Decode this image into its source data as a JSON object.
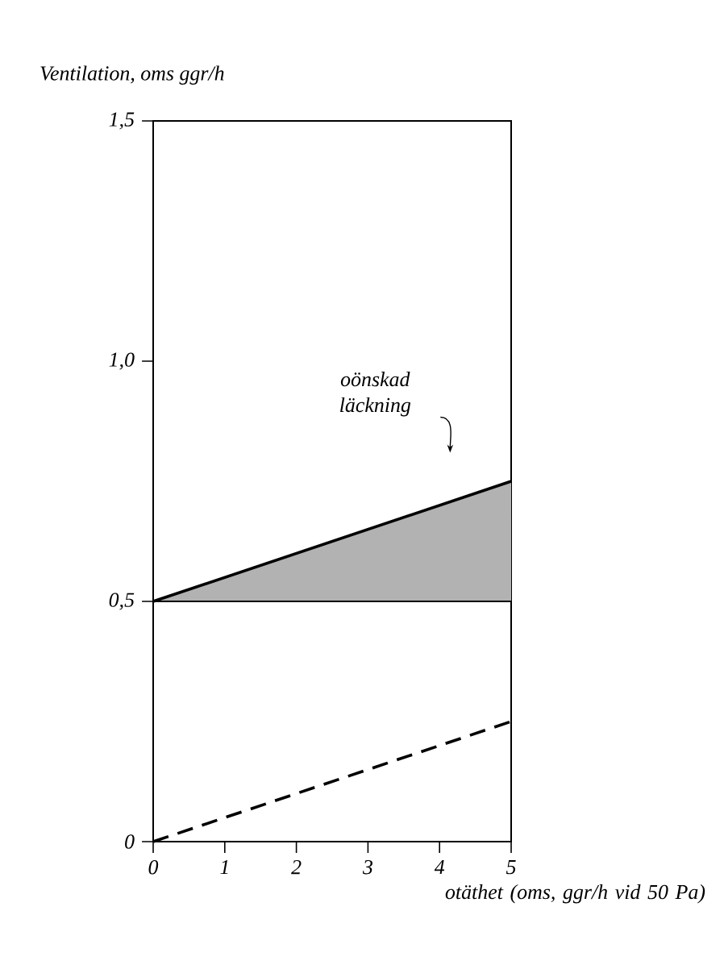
{
  "chart_data": {
    "type": "line",
    "ylabel": "Ventilation, oms ggr/h",
    "xlabel": "otäthet (oms, ggr/h vid 50 Pa)",
    "xlim": [
      0,
      5
    ],
    "xticks": [
      0,
      1,
      2,
      3,
      4,
      5
    ],
    "ylim": [
      0,
      1.5
    ],
    "yticks": [
      0,
      {
        "value": 0.5,
        "label": "0,5"
      },
      {
        "value": 1.0,
        "label": "1,0"
      },
      {
        "value": 1.5,
        "label": "1,5"
      }
    ],
    "marker": "none",
    "x": [
      0,
      5
    ],
    "series": [
      {
        "color": "#000000",
        "values": [
          0.5,
          0.75
        ],
        "lower": [
          0.5,
          0.5
        ],
        "upper": [
          0.5,
          0.75
        ]
      },
      {
        "color": "#000000",
        "values": [
          0.5,
          0.5
        ],
        "line_style": "solid"
      },
      {
        "color": "#000000",
        "values": [
          0,
          0.25
        ],
        "line_style": "dashed"
      }
    ],
    "annotations": [
      "oönskad läckning"
    ]
  }
}
